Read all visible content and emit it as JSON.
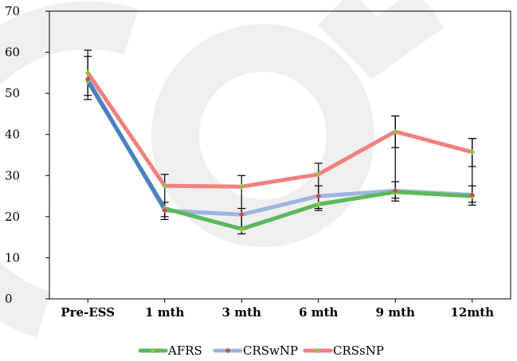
{
  "watermark": {
    "text": "CON",
    "color": "#efefef"
  },
  "chart_data": {
    "type": "line",
    "categories": [
      "Pre-ESS",
      "1 mth",
      "3 mth",
      "6 mth",
      "9 mth",
      "12mth"
    ],
    "ylim": [
      0,
      70
    ],
    "yticks": [
      0,
      10,
      20,
      30,
      40,
      50,
      60,
      70
    ],
    "grid": false,
    "legend_position": "bottom",
    "series": [
      {
        "name": "AFRS",
        "color": "#5cb85c",
        "marker_color": "#8dc63f",
        "values": [
          53,
          22,
          17,
          23,
          26,
          25
        ]
      },
      {
        "name": "CRSwNP",
        "color": "#9fb5de",
        "marker_color": "#c0504d",
        "values": [
          53.5,
          21.5,
          20.5,
          25,
          26.3,
          25.3
        ]
      },
      {
        "name": "CRSsNP",
        "color": "#f08080",
        "marker_color": "#8dc63f",
        "values": [
          55,
          27.5,
          27.3,
          30.3,
          40.7,
          35.7
        ]
      }
    ],
    "overlay_series": {
      "name": "AFRS",
      "color": "#4a7fc1",
      "values": [
        53,
        22
      ]
    },
    "error_bars": [
      {
        "category": "Pre-ESS",
        "low": 48.5,
        "high": 60.5
      },
      {
        "category": "Pre-ESS",
        "low": 49.5,
        "high": 59.0
      },
      {
        "category": "1 mth",
        "low": 19.3,
        "high": 30.3
      },
      {
        "category": "1 mth",
        "low": 20.0,
        "high": 23.5
      },
      {
        "category": "3 mth",
        "low": 15.8,
        "high": 30.0
      },
      {
        "category": "3 mth",
        "low": 17.5,
        "high": 22.0
      },
      {
        "category": "6 mth",
        "low": 21.5,
        "high": 33.0
      },
      {
        "category": "6 mth",
        "low": 22.0,
        "high": 27.5
      },
      {
        "category": "9 mth",
        "low": 23.8,
        "high": 44.5
      },
      {
        "category": "9 mth",
        "low": 24.5,
        "high": 28.5
      },
      {
        "category": "9 mth",
        "low": 36.8,
        "high": 44.5
      },
      {
        "category": "12mth",
        "low": 22.8,
        "high": 39.0
      },
      {
        "category": "12mth",
        "low": 23.5,
        "high": 27.5
      },
      {
        "category": "12mth",
        "low": 32.2,
        "high": 39.0
      }
    ]
  }
}
